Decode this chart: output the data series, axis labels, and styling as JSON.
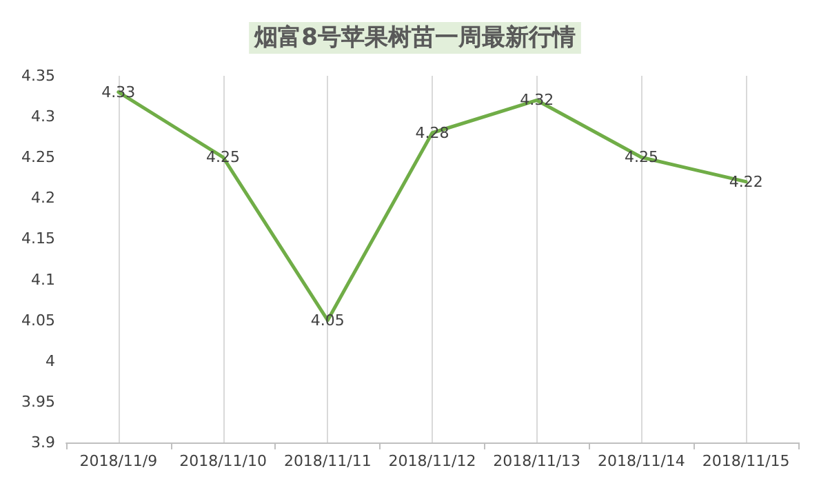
{
  "chart_data": {
    "type": "line",
    "title": "烟富8号苹果树苗一周最新行情",
    "categories": [
      "2018/11/9",
      "2018/11/10",
      "2018/11/11",
      "2018/11/12",
      "2018/11/13",
      "2018/11/14",
      "2018/11/15"
    ],
    "series": [
      {
        "color": "#70ad47",
        "values": [
          4.33,
          4.25,
          4.05,
          4.28,
          4.32,
          4.25,
          4.22
        ]
      }
    ],
    "ylim": [
      3.9,
      4.35
    ],
    "yticks": [
      3.9,
      3.95,
      4,
      4.05,
      4.1,
      4.15,
      4.2,
      4.25,
      4.3,
      4.35
    ],
    "grid": "x",
    "data_labels": true,
    "marker": "none",
    "line_style": "solid"
  }
}
